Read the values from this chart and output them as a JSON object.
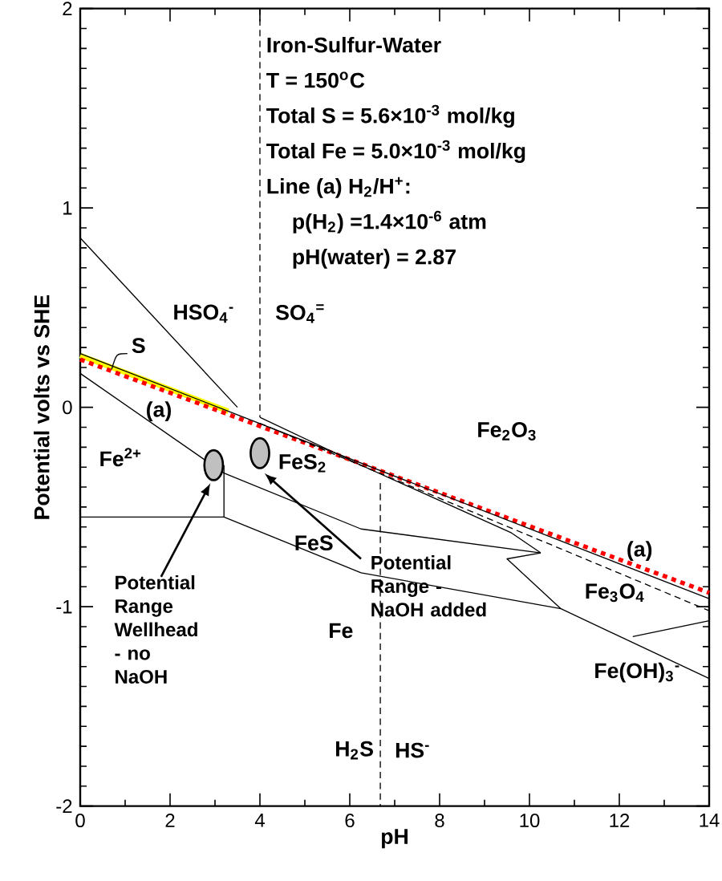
{
  "chart_data": {
    "type": "line",
    "title": "Iron-Sulfur-Water",
    "xlabel": "pH",
    "ylabel": "Potential volts vs SHE",
    "xlim": [
      0,
      14
    ],
    "ylim": [
      -2,
      2
    ],
    "xticks": [
      0,
      2,
      4,
      6,
      8,
      10,
      12,
      14
    ],
    "yticks": [
      -2,
      -1,
      0,
      1,
      2
    ],
    "series": [
      {
        "x": [
          0,
          3.3
        ],
        "values": [
          0.26,
          -0.02
        ],
        "color": "#ffff00",
        "line_style": "solid"
      },
      {
        "x": [
          0,
          14
        ],
        "values": [
          0.24,
          -0.93
        ],
        "color": "#ff0000",
        "line_style": "dotted"
      },
      {
        "x": [
          0,
          14
        ],
        "values": [
          0.27,
          -0.96
        ],
        "color": "#000000",
        "line_style": "solid"
      },
      {
        "x": [
          0,
          3.5
        ],
        "values": [
          0.85,
          0.0
        ],
        "color": "#000000",
        "line_style": "solid"
      },
      {
        "x": [
          0,
          3.2
        ],
        "values": [
          0.17,
          -0.33
        ],
        "color": "#000000",
        "line_style": "solid"
      },
      {
        "x": [
          4.0,
          6.25,
          9.6,
          10.25
        ],
        "values": [
          -0.05,
          -0.29,
          -0.63,
          -0.73
        ],
        "color": "#000000",
        "line_style": "solid"
      },
      {
        "x": [
          3.2,
          6.25,
          10.25
        ],
        "values": [
          -0.33,
          -0.61,
          -0.73
        ],
        "color": "#000000",
        "line_style": "solid"
      },
      {
        "x": [
          10.25,
          9.5,
          10.7
        ],
        "values": [
          -0.73,
          -0.76,
          -1.01
        ],
        "color": "#000000",
        "line_style": "solid"
      },
      {
        "x": [
          3.2,
          6.25,
          10.7,
          14
        ],
        "values": [
          -0.55,
          -0.83,
          -1.01,
          -1.36
        ],
        "color": "#000000",
        "line_style": "solid"
      },
      {
        "x": [
          0,
          3.2,
          3.2
        ],
        "values": [
          -0.55,
          -0.55,
          -0.29
        ],
        "color": "#000000",
        "line_style": "solid"
      },
      {
        "x": [
          4.0,
          14
        ],
        "values": [
          -0.08,
          -1.02
        ],
        "color": "#000000",
        "line_style": "dashed"
      },
      {
        "x": [
          12.3,
          14
        ],
        "values": [
          -1.15,
          -1.07
        ],
        "color": "#000000",
        "line_style": "solid"
      },
      {
        "type": "scatter",
        "x": [
          2.97,
          4.0
        ],
        "values": [
          -0.29,
          -0.23
        ],
        "color": "#c0c0c0",
        "marker": "circle"
      }
    ],
    "ref_lines": [
      {
        "axis": "x",
        "value": 4.0,
        "line_style": "dashed"
      },
      {
        "axis": "x",
        "value": 6.68,
        "line_style": "dashed"
      }
    ],
    "annotations": [
      "T = 150$^{o}$C",
      "Total S = 5.6×10$^{-3}$ mol/kg",
      "Total Fe = 5.0×10$^{-3}$ mol/kg",
      "Line (a) H$_{2}$/H$^{+}$:",
      "p(H$_{2}$) =1.4×10$^{-6}$ atm",
      "pH(water) = 2.87",
      {
        "text": "Potential Range Wellhead - no NaOH",
        "x": 2.9,
        "y": -0.38
      },
      {
        "text": "Potential Range - NaOH added",
        "x": 4.1,
        "y": -0.33
      },
      "HSO$_{4}$$^{-}$",
      "SO$_{4}$$^{=}$",
      "S",
      "(a)",
      "(a)",
      "Fe$^{2+}$",
      "FeS$_{2}$",
      "FeS",
      "Fe",
      "Fe$_{2}$O$_{3}$",
      "Fe$_{3}$O$_{4}$",
      "Fe(OH)$_{3}$$^{-}$",
      "H$_{2}$S",
      "HS$^{-}$"
    ]
  }
}
